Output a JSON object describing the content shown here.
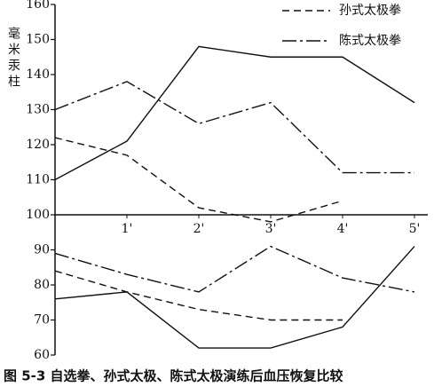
{
  "chart_data": {
    "type": "line",
    "y_label": "毫米汞柱",
    "caption": "图 5-3  自选拳、孙式太极、陈式太极演练后血压恢复比较",
    "categories": [
      null,
      "1'",
      "2'",
      "3'",
      "4'",
      "5'"
    ],
    "ylim": [
      60,
      160
    ],
    "yticks": [
      60,
      70,
      80,
      90,
      100,
      110,
      120,
      130,
      140,
      150,
      160
    ],
    "baseline": 100,
    "series": [
      {
        "name": "孙式太极拳",
        "dash": "8 5",
        "color": "#111111",
        "values": [
          122,
          117,
          102,
          98,
          104,
          null
        ],
        "lower": [
          84,
          78,
          73,
          70,
          70,
          null
        ]
      },
      {
        "name": "陈式太极拳",
        "dash": "16 4 3 4",
        "color": "#111111",
        "values": [
          130,
          138,
          126,
          132,
          112,
          112
        ],
        "lower": [
          89,
          83,
          78,
          91,
          82,
          78
        ]
      },
      {
        "dash": "none",
        "color": "#111111",
        "values": [
          110,
          121,
          148,
          145,
          145,
          132
        ],
        "lower": [
          76,
          78,
          62,
          62,
          68,
          91
        ]
      }
    ]
  }
}
